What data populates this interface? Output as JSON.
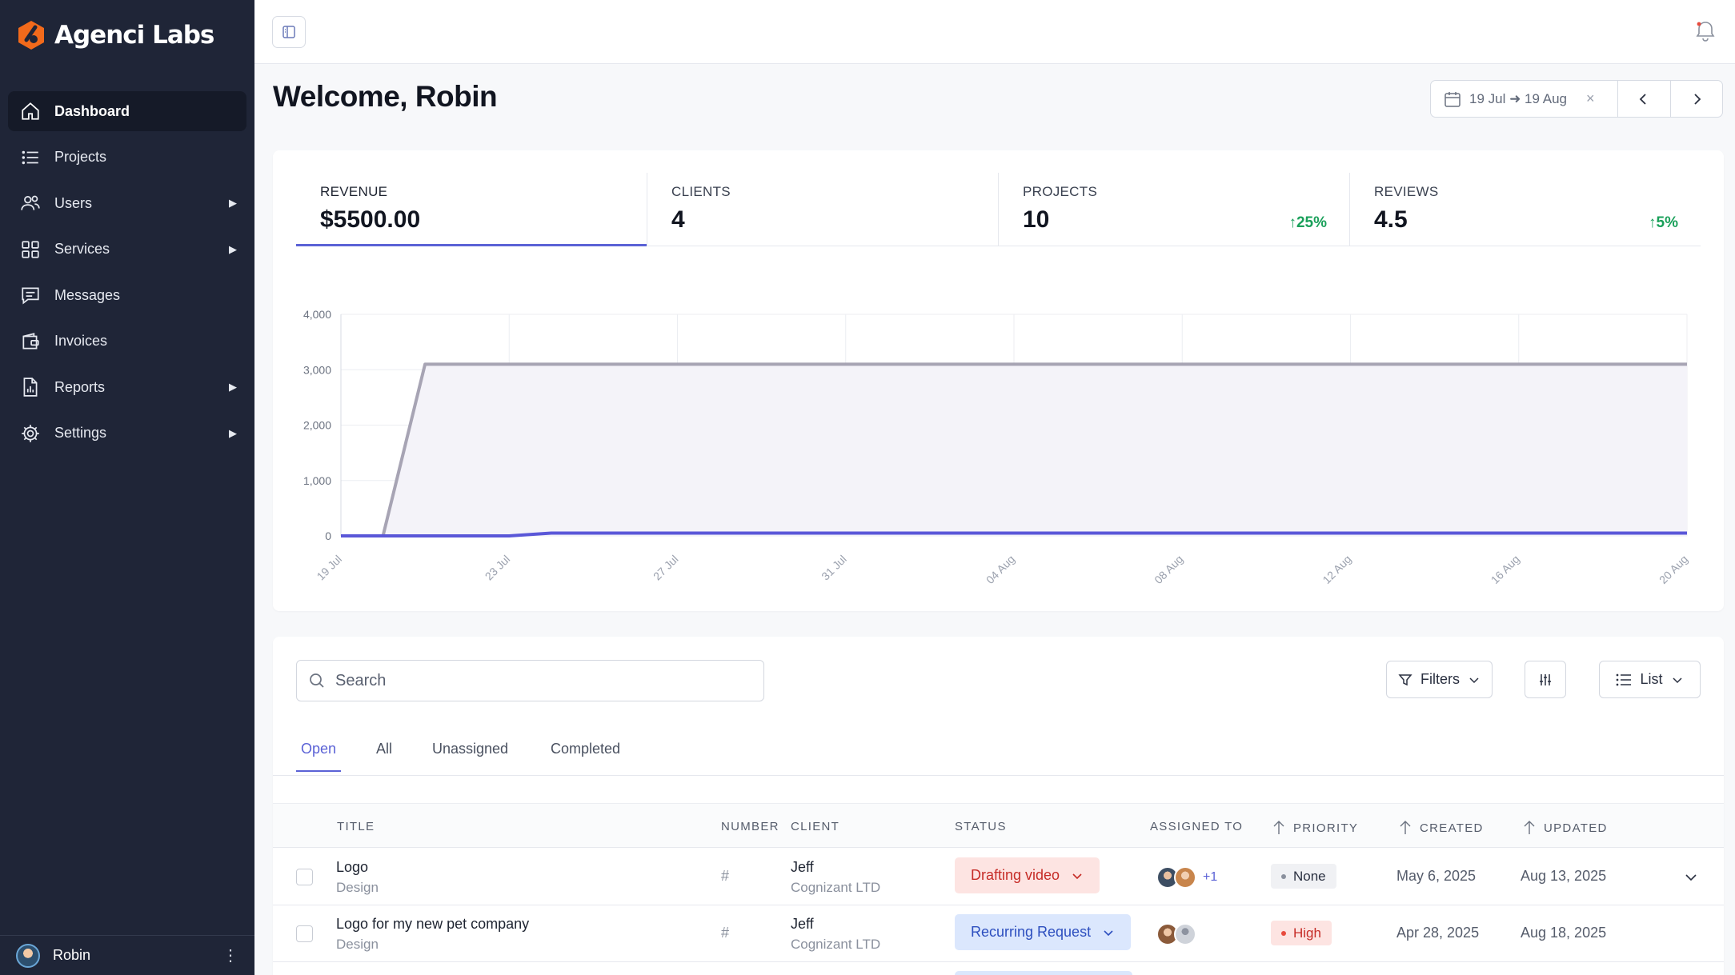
{
  "app": {
    "name": "Agenci Labs"
  },
  "sidebar": {
    "items": [
      {
        "label": "Dashboard",
        "icon": "home-icon",
        "active": true,
        "arrow": false
      },
      {
        "label": "Projects",
        "icon": "list-icon",
        "arrow": false
      },
      {
        "label": "Users",
        "icon": "users-icon",
        "arrow": true
      },
      {
        "label": "Services",
        "icon": "grid-icon",
        "arrow": true
      },
      {
        "label": "Messages",
        "icon": "message-icon",
        "arrow": false
      },
      {
        "label": "Invoices",
        "icon": "wallet-icon",
        "arrow": false
      },
      {
        "label": "Reports",
        "icon": "report-icon",
        "arrow": true
      },
      {
        "label": "Settings",
        "icon": "gear-icon",
        "arrow": true
      }
    ],
    "arrow_glyph": "▶",
    "user": {
      "name": "Robin",
      "menu": "⋮"
    }
  },
  "header": {
    "welcome": "Welcome, Robin"
  },
  "date_range": {
    "label": "19 Jul ➜ 19 Aug",
    "clear": "×"
  },
  "stats": [
    {
      "label": "REVENUE",
      "value": "$5500.00",
      "change": ""
    },
    {
      "label": "CLIENTS",
      "value": "4",
      "change": ""
    },
    {
      "label": "PROJECTS",
      "value": "10",
      "change": "↑25%"
    },
    {
      "label": "REVIEWS",
      "value": "4.5",
      "change": "↑5%"
    }
  ],
  "chart_data": {
    "type": "area",
    "x": [
      "19 Jul",
      "20 Jul",
      "21 Jul",
      "22 Jul",
      "23 Jul",
      "24 Jul",
      "25 Jul",
      "26 Jul",
      "27 Jul",
      "28 Jul",
      "29 Jul",
      "30 Jul",
      "31 Jul",
      "01 Aug",
      "02 Aug",
      "03 Aug",
      "04 Aug",
      "05 Aug",
      "06 Aug",
      "07 Aug",
      "08 Aug",
      "09 Aug",
      "10 Aug",
      "11 Aug",
      "12 Aug",
      "13 Aug",
      "14 Aug",
      "15 Aug",
      "16 Aug",
      "17 Aug",
      "18 Aug",
      "19 Aug",
      "20 Aug"
    ],
    "tick_labels": [
      "19 Jul",
      "23 Jul",
      "27 Jul",
      "31 Jul",
      "04 Aug",
      "08 Aug",
      "12 Aug",
      "16 Aug",
      "20 Aug"
    ],
    "yticks": [
      0,
      1000,
      2000,
      3000,
      4000
    ],
    "ytick_labels": [
      "0",
      "1,000",
      "2,000",
      "3,000",
      "4,000"
    ],
    "ylim": [
      0,
      4000
    ],
    "series": [
      {
        "color": "#a7a4b4",
        "fill": "#f4f3f9",
        "values": [
          0,
          0,
          3100,
          3100,
          3100,
          3100,
          3100,
          3100,
          3100,
          3100,
          3100,
          3100,
          3100,
          3100,
          3100,
          3100,
          3100,
          3100,
          3100,
          3100,
          3100,
          3100,
          3100,
          3100,
          3100,
          3100,
          3100,
          3100,
          3100,
          3100,
          3100,
          3100,
          3100
        ]
      },
      {
        "color": "#5a57d8",
        "fill": "none",
        "values": [
          0,
          0,
          0,
          0,
          0,
          50,
          50,
          50,
          50,
          50,
          50,
          50,
          50,
          50,
          50,
          50,
          50,
          50,
          50,
          50,
          50,
          50,
          50,
          50,
          50,
          50,
          50,
          50,
          50,
          50,
          50,
          50,
          50
        ]
      }
    ]
  },
  "table": {
    "search_placeholder": "Search",
    "filters_label": "Filters",
    "view_label": "List",
    "tabs": [
      "Open",
      "All",
      "Unassigned",
      "Completed"
    ],
    "columns": {
      "title": "TITLE",
      "number": "NUMBER",
      "client": "CLIENT",
      "status": "STATUS",
      "assigned": "ASSIGNED TO",
      "priority": "PRIORITY",
      "created": "CREATED",
      "updated": "UPDATED"
    },
    "rows": [
      {
        "title": "Logo",
        "category": "Design",
        "number": "#",
        "client": "Jeff",
        "company": "Cognizant LTD",
        "status": "Drafting video",
        "status_color": "red",
        "extra_assignees": "+1",
        "priority": "None",
        "created": "May 6, 2025",
        "updated": "Aug 13, 2025"
      },
      {
        "title": "Logo for my new pet company",
        "category": "Design",
        "number": "#",
        "client": "Jeff",
        "company": "Cognizant LTD",
        "status": "Recurring Request",
        "status_color": "blue",
        "extra_assignees": "",
        "priority": "High",
        "created": "Apr 28, 2025",
        "updated": "Aug 18, 2025"
      }
    ]
  },
  "colors": {
    "accent": "#5b62d6",
    "sidebar_bg": "#1f2537",
    "brand_orange": "#f26a1b",
    "positive": "#1aa05a"
  }
}
